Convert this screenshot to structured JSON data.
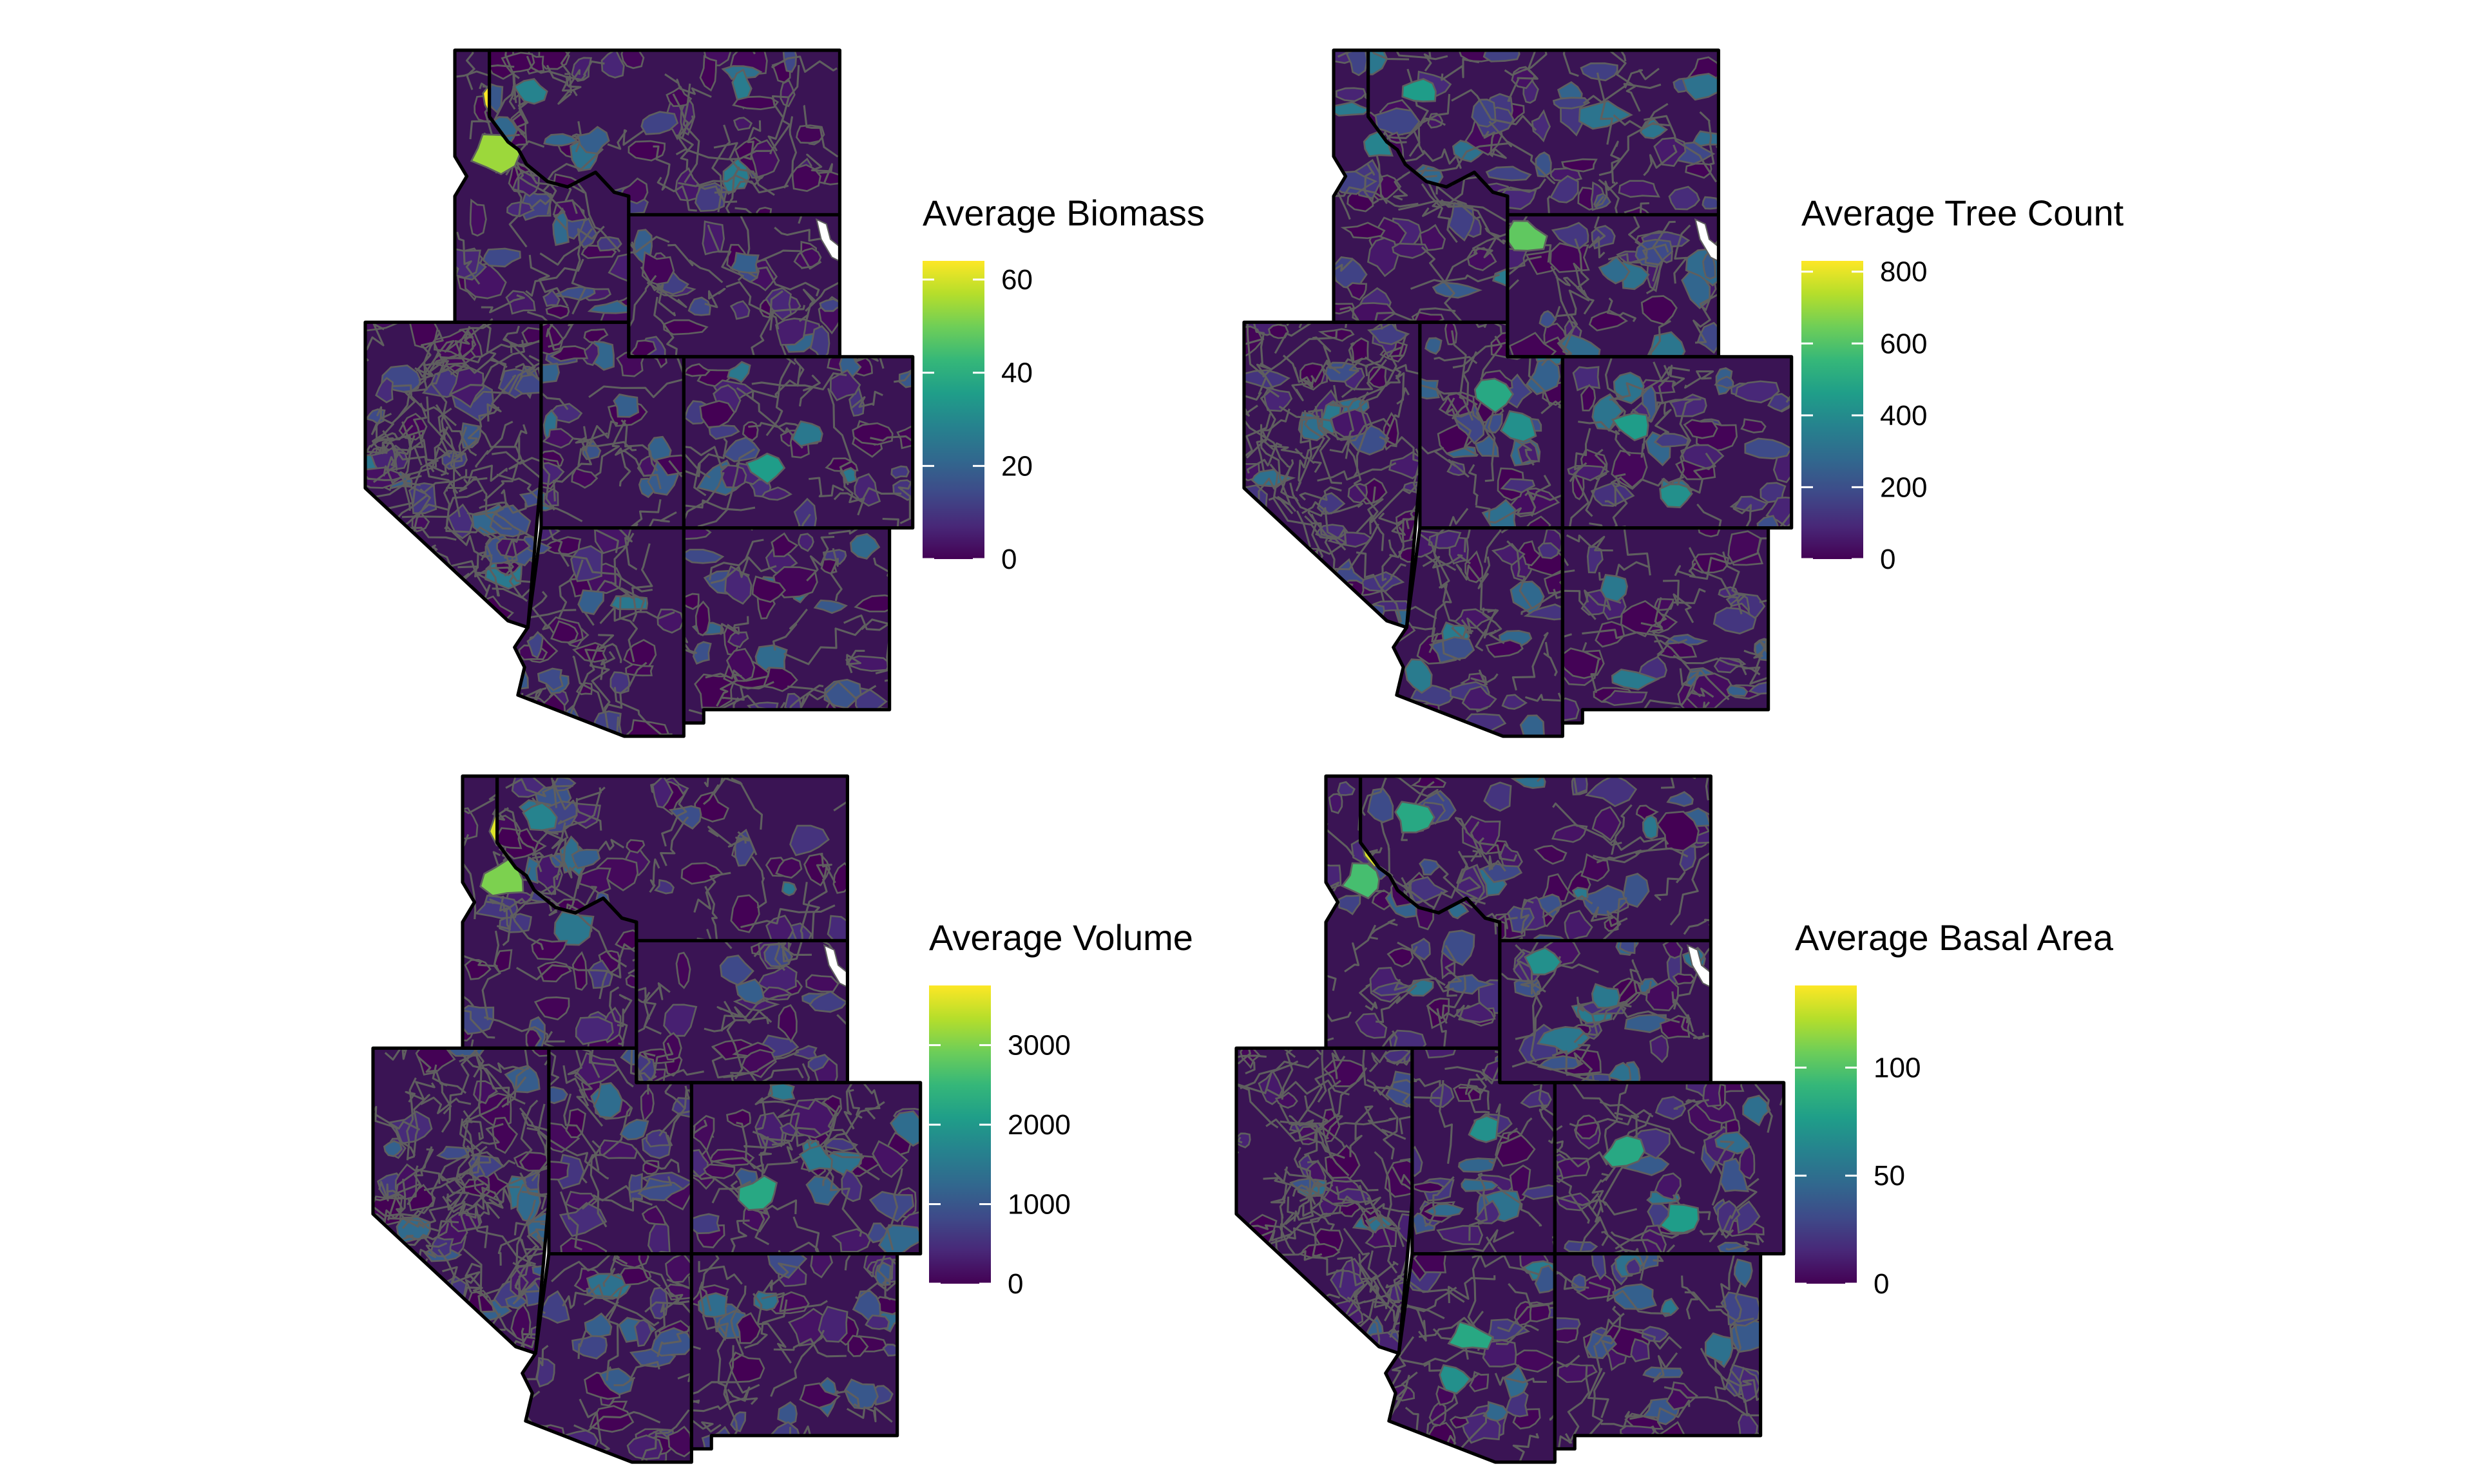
{
  "palette": {
    "viridis": [
      "#440154",
      "#482878",
      "#3e4a89",
      "#31688e",
      "#26828e",
      "#1f9e89",
      "#35b779",
      "#6ece58",
      "#b5de2b",
      "#fde725"
    ],
    "state_fill": "#3a1454",
    "zone_line": "#5f5f5f",
    "state_border": "#000000",
    "lake": "#ffffff"
  },
  "region": {
    "states": [
      "Idaho",
      "Montana",
      "Wyoming",
      "Nevada",
      "Utah",
      "Colorado",
      "Arizona",
      "New Mexico"
    ]
  },
  "panels": [
    {
      "id": "biomass",
      "legend": {
        "title": "Average Biomass",
        "max": 64,
        "ticks": [
          {
            "value": 0,
            "label": "0"
          },
          {
            "value": 20,
            "label": "20"
          },
          {
            "value": 40,
            "label": "40"
          },
          {
            "value": 60,
            "label": "60"
          }
        ]
      },
      "hotspots": [
        {
          "state": "Idaho",
          "u": 0.28,
          "v": 0.18,
          "level": 1.0
        },
        {
          "state": "Idaho",
          "u": 0.35,
          "v": 0.27,
          "level": 0.92
        },
        {
          "state": "Idaho",
          "u": 0.24,
          "v": 0.38,
          "level": 0.85
        },
        {
          "state": "Montana",
          "u": 0.12,
          "v": 0.25,
          "level": 0.45
        },
        {
          "state": "Montana",
          "u": 0.3,
          "v": 0.55,
          "level": 0.3
        },
        {
          "state": "Wyoming",
          "u": 0.55,
          "v": 0.35,
          "level": 0.3
        },
        {
          "state": "Colorado",
          "u": 0.35,
          "v": 0.65,
          "level": 0.55
        },
        {
          "state": "Colorado",
          "u": 0.55,
          "v": 0.45,
          "level": 0.4
        },
        {
          "state": "Utah",
          "u": 0.6,
          "v": 0.4,
          "level": 0.3
        },
        {
          "state": "Arizona",
          "u": 0.45,
          "v": 0.35,
          "level": 0.3
        }
      ]
    },
    {
      "id": "tree-count",
      "legend": {
        "title": "Average Tree Count",
        "max": 830,
        "ticks": [
          {
            "value": 0,
            "label": "0"
          },
          {
            "value": 200,
            "label": "200"
          },
          {
            "value": 400,
            "label": "400"
          },
          {
            "value": 600,
            "label": "600"
          },
          {
            "value": 800,
            "label": "800"
          }
        ]
      },
      "hotspots": [
        {
          "state": "Idaho",
          "u": 0.3,
          "v": 0.15,
          "level": 0.6
        },
        {
          "state": "Idaho",
          "u": 0.25,
          "v": 0.35,
          "level": 0.45
        },
        {
          "state": "Montana",
          "u": 0.15,
          "v": 0.25,
          "level": 0.55
        },
        {
          "state": "Wyoming",
          "u": 0.08,
          "v": 0.15,
          "level": 0.75
        },
        {
          "state": "Wyoming",
          "u": 0.5,
          "v": 0.4,
          "level": 0.35
        },
        {
          "state": "Utah",
          "u": 0.5,
          "v": 0.35,
          "level": 0.6
        },
        {
          "state": "Utah",
          "u": 0.7,
          "v": 0.5,
          "level": 0.5
        },
        {
          "state": "Colorado",
          "u": 0.3,
          "v": 0.4,
          "level": 0.55
        },
        {
          "state": "Colorado",
          "u": 0.5,
          "v": 0.8,
          "level": 0.5
        },
        {
          "state": "New Mexico",
          "u": 0.25,
          "v": 0.3,
          "level": 0.4
        }
      ]
    },
    {
      "id": "volume",
      "legend": {
        "title": "Average Volume",
        "max": 3750,
        "ticks": [
          {
            "value": 0,
            "label": "0"
          },
          {
            "value": 1000,
            "label": "1000"
          },
          {
            "value": 2000,
            "label": "2000"
          },
          {
            "value": 3000,
            "label": "3000"
          }
        ]
      },
      "hotspots": [
        {
          "state": "Idaho",
          "u": 0.28,
          "v": 0.18,
          "level": 0.95
        },
        {
          "state": "Idaho",
          "u": 0.35,
          "v": 0.27,
          "level": 1.0
        },
        {
          "state": "Idaho",
          "u": 0.24,
          "v": 0.38,
          "level": 0.8
        },
        {
          "state": "Montana",
          "u": 0.12,
          "v": 0.25,
          "level": 0.45
        },
        {
          "state": "Montana",
          "u": 0.25,
          "v": 0.5,
          "level": 0.3
        },
        {
          "state": "Wyoming",
          "u": 0.55,
          "v": 0.35,
          "level": 0.3
        },
        {
          "state": "Colorado",
          "u": 0.3,
          "v": 0.65,
          "level": 0.6
        },
        {
          "state": "Colorado",
          "u": 0.55,
          "v": 0.45,
          "level": 0.4
        },
        {
          "state": "Utah",
          "u": 0.6,
          "v": 0.4,
          "level": 0.3
        },
        {
          "state": "Arizona",
          "u": 0.45,
          "v": 0.35,
          "level": 0.3
        }
      ]
    },
    {
      "id": "basal-area",
      "legend": {
        "title": "Average Basal Area",
        "max": 138,
        "ticks": [
          {
            "value": 0,
            "label": "0"
          },
          {
            "value": 50,
            "label": "50"
          },
          {
            "value": 100,
            "label": "100"
          }
        ]
      },
      "hotspots": [
        {
          "state": "Idaho",
          "u": 0.28,
          "v": 0.18,
          "level": 0.85
        },
        {
          "state": "Idaho",
          "u": 0.35,
          "v": 0.27,
          "level": 0.95
        },
        {
          "state": "Idaho",
          "u": 0.22,
          "v": 0.38,
          "level": 0.7
        },
        {
          "state": "Montana",
          "u": 0.15,
          "v": 0.25,
          "level": 0.6
        },
        {
          "state": "Wyoming",
          "u": 0.2,
          "v": 0.15,
          "level": 0.5
        },
        {
          "state": "Wyoming",
          "u": 0.5,
          "v": 0.4,
          "level": 0.4
        },
        {
          "state": "Utah",
          "u": 0.5,
          "v": 0.4,
          "level": 0.5
        },
        {
          "state": "Colorado",
          "u": 0.3,
          "v": 0.4,
          "level": 0.6
        },
        {
          "state": "Colorado",
          "u": 0.55,
          "v": 0.8,
          "level": 0.55
        },
        {
          "state": "Arizona",
          "u": 0.5,
          "v": 0.4,
          "level": 0.6
        },
        {
          "state": "Arizona",
          "u": 0.4,
          "v": 0.6,
          "level": 0.5
        }
      ]
    }
  ]
}
